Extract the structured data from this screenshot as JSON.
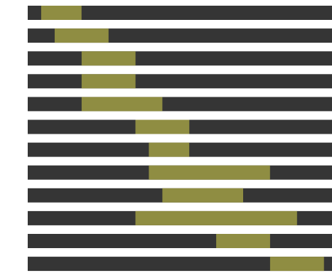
{
  "chart_data": {
    "type": "bar",
    "orientation": "horizontal",
    "stacked": true,
    "title": "",
    "xlabel": "",
    "ylabel": "",
    "xlim": [
      0,
      22.6
    ],
    "grid": false,
    "legend": "none",
    "tick_labels_visible": false,
    "colors": {
      "background": "#ffffff",
      "track": "#353535",
      "highlight": "#8f8d42"
    },
    "series": [
      {
        "name": "",
        "role": "offset",
        "values": [
          1,
          2,
          4,
          4,
          4,
          8,
          9,
          9,
          10,
          8,
          14,
          18
        ]
      },
      {
        "name": "",
        "role": "segment",
        "values": [
          3,
          4,
          4,
          4,
          6,
          4,
          3,
          9,
          6,
          12,
          4,
          4
        ]
      }
    ]
  }
}
